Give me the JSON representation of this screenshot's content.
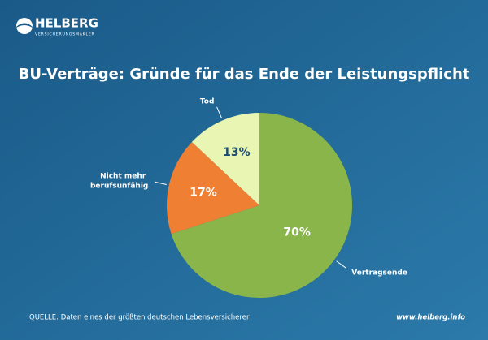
{
  "brand": {
    "name": "HELBERG",
    "tagline": "VERSICHERUNGSMAKLER"
  },
  "footer": {
    "source": "QUELLE: Daten eines der größten deutschen Lebensversicherer",
    "website": "www.helberg.info"
  },
  "chart_data": {
    "type": "pie",
    "title": "BU-Verträge: Gründe für das Ende der Leistungspflicht",
    "categories": [
      "Vertragsende",
      "Nicht mehr berufsunfähig",
      "Tod"
    ],
    "values": [
      70,
      17,
      13
    ],
    "value_labels": [
      "70%",
      "17%",
      "13%"
    ],
    "colors": [
      "#8ab54a",
      "#ee7f33",
      "#e9f5b2"
    ]
  }
}
